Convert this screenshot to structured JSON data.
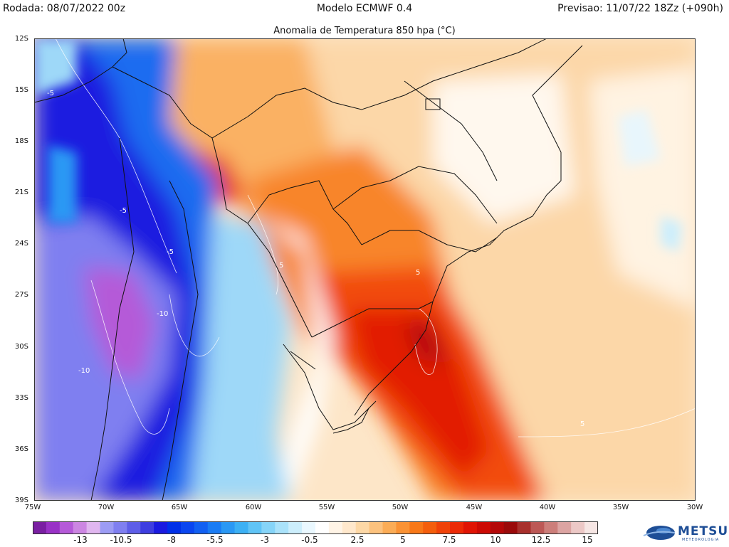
{
  "header": {
    "rodada": "Rodada: 08/07/2022 00z",
    "modelo": "Modelo ECMWF 0.4",
    "previsao": "Previsao: 11/07/22 18Zz (+090h)"
  },
  "subtitle": "Anomalia de Temperatura 850 hpa (°C)",
  "map": {
    "lat_labels": [
      "12S",
      "15S",
      "18S",
      "21S",
      "24S",
      "27S",
      "30S",
      "33S",
      "36S",
      "39S"
    ],
    "lon_labels": [
      "75W",
      "70W",
      "65W",
      "60W",
      "55W",
      "50W",
      "45W",
      "40W",
      "35W",
      "30W"
    ],
    "contour_labels": [
      "-5",
      "-5",
      "-5",
      "-10",
      "-10",
      "5",
      "5",
      "5"
    ]
  },
  "colorbar": {
    "labels": [
      "-13",
      "-10.5",
      "-8",
      "-5.5",
      "-3",
      "-0.5",
      "2.5",
      "5",
      "7.5",
      "10",
      "12.5",
      "15"
    ],
    "colors": [
      "#7a1fa2",
      "#9932c6",
      "#b55ad8",
      "#cc86e2",
      "#e0b6ef",
      "#9c9cf4",
      "#7f7ff0",
      "#5e5ee8",
      "#3e3ee0",
      "#1a1ae0",
      "#0030e8",
      "#0a46f0",
      "#1260f2",
      "#1a7cf4",
      "#2a98f4",
      "#3cb0f4",
      "#60c4f6",
      "#86d4f8",
      "#aae2fa",
      "#cceefc",
      "#eaf8ff",
      "#ffffff",
      "#fff4e6",
      "#ffe8cc",
      "#fdd8a6",
      "#fcc27e",
      "#fbac56",
      "#fa9234",
      "#f87818",
      "#f45e0c",
      "#f04208",
      "#ec2a06",
      "#e01404",
      "#cc0a04",
      "#b40808",
      "#9a0a0a",
      "#a8302c",
      "#bc5856",
      "#cc7e7a",
      "#dca4a2",
      "#ecc8c6",
      "#f6e6e4"
    ]
  },
  "logo": {
    "name": "METSUL",
    "sub": "METEOROLOGIA"
  }
}
